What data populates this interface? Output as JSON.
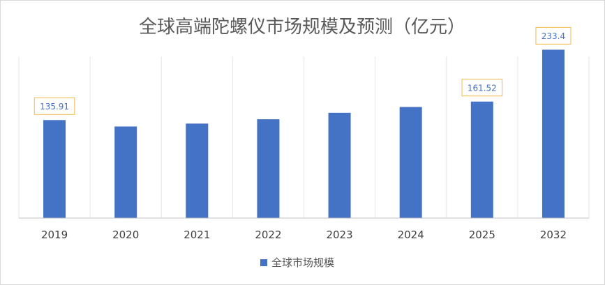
{
  "chart_data": {
    "type": "bar",
    "title": "全球高端陀螺仪市场规模及预测（亿元）",
    "xlabel": "",
    "ylabel": "",
    "categories": [
      "2019",
      "2020",
      "2021",
      "2022",
      "2023",
      "2024",
      "2025",
      "2032"
    ],
    "series": [
      {
        "name": "全球市场规模",
        "values": [
          135.91,
          127,
          131,
          137,
          146,
          154,
          161.52,
          233.4
        ],
        "data_labels": [
          "135.91",
          null,
          null,
          null,
          null,
          null,
          "161.52",
          "233.4"
        ]
      }
    ],
    "ylim": [
      0,
      240
    ],
    "grid": "vertical",
    "legend": "bottom",
    "colors": {
      "bar": "#4472c4",
      "label_border": "#f0b945",
      "grid": "#e6e6e6",
      "axis": "#bfbfbf"
    }
  }
}
